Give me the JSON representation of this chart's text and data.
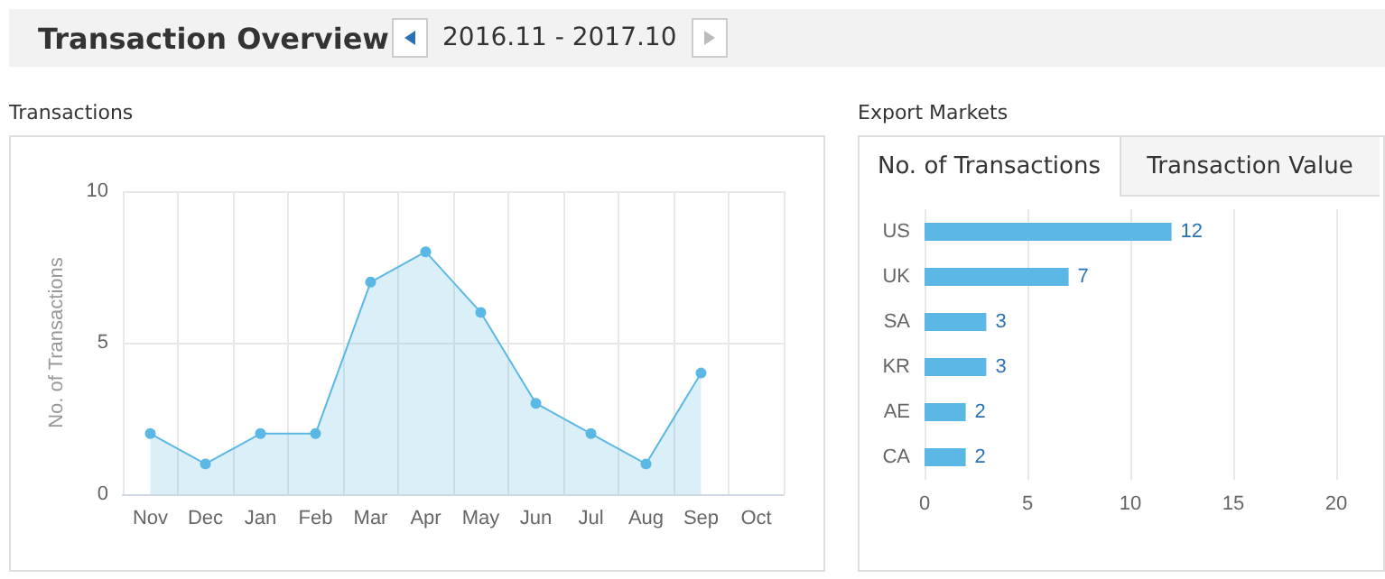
{
  "chart_data": [
    {
      "type": "other",
      "title": "Transaction Overview",
      "annotations": [
        "2016.11 - 2017.10"
      ]
    },
    {
      "type": "area",
      "title": "Transactions",
      "ylabel": "No. of Transactions",
      "categories": [
        "Nov",
        "Dec",
        "Jan",
        "Feb",
        "Mar",
        "Apr",
        "May",
        "Jun",
        "Jul",
        "Aug",
        "Sep",
        "Oct"
      ],
      "series": [
        {
          "color": "#5bb8e4",
          "values": [
            2,
            1,
            2,
            2,
            7,
            8,
            6,
            3,
            2,
            1,
            4,
            null
          ]
        }
      ],
      "ylim": [
        0,
        10
      ],
      "yticks": [
        0,
        5,
        10
      ],
      "grid": true,
      "marker": "circle",
      "line_style": "solid"
    },
    {
      "type": "bar",
      "orientation": "horizontal",
      "title": "Export Markets",
      "annotations": [
        "No. of Transactions",
        "Transaction Value"
      ],
      "categories": [
        "US",
        "UK",
        "SA",
        "KR",
        "AE",
        "CA"
      ],
      "series": [
        {
          "color": "#5bb8e4",
          "values": [
            12,
            7,
            3,
            3,
            2,
            2
          ]
        }
      ],
      "xlim": [
        0,
        20
      ],
      "xticks": [
        0,
        5,
        10,
        15,
        20
      ],
      "grid": "x",
      "data_labels": true
    }
  ]
}
